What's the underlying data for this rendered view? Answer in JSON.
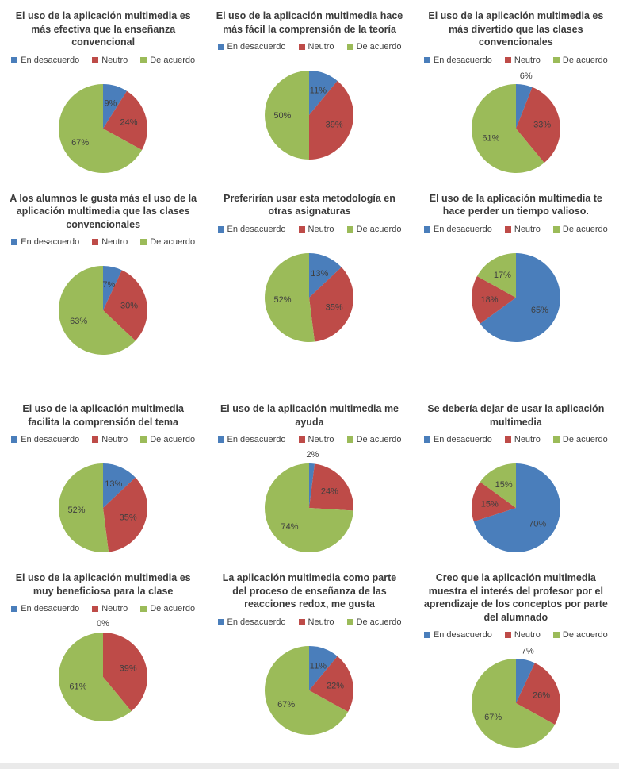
{
  "legend": {
    "items": [
      {
        "label": "En desacuerdo",
        "color": "#4A7EBB"
      },
      {
        "label": "Neutro",
        "color": "#BE4B48"
      },
      {
        "label": "De acuerdo",
        "color": "#9BBB59"
      }
    ],
    "position": "top"
  },
  "palette": {
    "label_text": "#3f3f3f",
    "title_text": "#3a3a3a",
    "background": "#ffffff"
  },
  "chart_data": [
    {
      "type": "pie",
      "title": "El uso de la aplicación multimedia es más efectiva que la enseñanza convencional",
      "categories": [
        "En desacuerdo",
        "Neutro",
        "De acuerdo"
      ],
      "values": [
        9,
        24,
        67
      ],
      "data_labels": [
        "9%",
        "24%",
        "67%"
      ],
      "label_placement": [
        "inside",
        "inside",
        "inside"
      ],
      "legend_position": "top"
    },
    {
      "type": "pie",
      "title": "El uso de la aplicación multimedia hace más fácil la comprensión de la teoría",
      "categories": [
        "En desacuerdo",
        "Neutro",
        "De acuerdo"
      ],
      "values": [
        11,
        39,
        50
      ],
      "data_labels": [
        "11%",
        "39%",
        "50%"
      ],
      "label_placement": [
        "inside",
        "inside",
        "inside"
      ],
      "legend_position": "top"
    },
    {
      "type": "pie",
      "title": "El uso de la aplicación multimedia es más divertido que las clases convencionales",
      "categories": [
        "En desacuerdo",
        "Neutro",
        "De acuerdo"
      ],
      "values": [
        6,
        33,
        61
      ],
      "data_labels": [
        "6%",
        "33%",
        "61%"
      ],
      "label_placement": [
        "outside",
        "inside",
        "inside"
      ],
      "legend_position": "top"
    },
    {
      "type": "pie",
      "title": "A los alumnos le gusta más el uso de la aplicación multimedia que las clases convencionales",
      "categories": [
        "En desacuerdo",
        "Neutro",
        "De acuerdo"
      ],
      "values": [
        7,
        30,
        63
      ],
      "data_labels": [
        "7%",
        "30%",
        "63%"
      ],
      "label_placement": [
        "inside",
        "inside",
        "inside"
      ],
      "legend_position": "top"
    },
    {
      "type": "pie",
      "title": "Preferirían usar esta metodología en otras asignaturas",
      "categories": [
        "En desacuerdo",
        "Neutro",
        "De acuerdo"
      ],
      "values": [
        13,
        35,
        52
      ],
      "data_labels": [
        "13%",
        "35%",
        "52%"
      ],
      "label_placement": [
        "inside",
        "inside",
        "inside"
      ],
      "legend_position": "top"
    },
    {
      "type": "pie",
      "title": "El uso de la aplicación multimedia te hace perder un tiempo valioso.",
      "categories": [
        "En desacuerdo",
        "Neutro",
        "De acuerdo"
      ],
      "values": [
        65,
        18,
        17
      ],
      "data_labels": [
        "65%",
        "18%",
        "17%"
      ],
      "label_placement": [
        "inside",
        "inside",
        "inside"
      ],
      "legend_position": "top"
    },
    {
      "type": "pie",
      "title": "El uso de la aplicación multimedia facilita la comprensión del tema",
      "categories": [
        "En desacuerdo",
        "Neutro",
        "De acuerdo"
      ],
      "values": [
        13,
        35,
        52
      ],
      "data_labels": [
        "13%",
        "35%",
        "52%"
      ],
      "label_placement": [
        "inside",
        "inside",
        "inside"
      ],
      "legend_position": "top"
    },
    {
      "type": "pie",
      "title": "El uso de la aplicación multimedia me ayuda",
      "categories": [
        "En desacuerdo",
        "Neutro",
        "De acuerdo"
      ],
      "values": [
        2,
        24,
        74
      ],
      "data_labels": [
        "2%",
        "24%",
        "74%"
      ],
      "label_placement": [
        "outside",
        "inside",
        "inside"
      ],
      "legend_position": "top"
    },
    {
      "type": "pie",
      "title": "Se debería dejar de usar la aplicación multimedia",
      "categories": [
        "En desacuerdo",
        "Neutro",
        "De acuerdo"
      ],
      "values": [
        70,
        15,
        15
      ],
      "data_labels": [
        "70%",
        "15%",
        "15%"
      ],
      "label_placement": [
        "inside",
        "inside",
        "inside"
      ],
      "legend_position": "top"
    },
    {
      "type": "pie",
      "title": "El uso de la aplicación multimedia es muy beneficiosa para la clase",
      "categories": [
        "En desacuerdo",
        "Neutro",
        "De acuerdo"
      ],
      "values": [
        0,
        39,
        61
      ],
      "data_labels": [
        "0%",
        "39%",
        "61%"
      ],
      "label_placement": [
        "outside",
        "inside",
        "inside"
      ],
      "legend_position": "top"
    },
    {
      "type": "pie",
      "title": "La aplicación multimedia como parte del proceso de enseñanza de las reacciones redox, me gusta",
      "categories": [
        "En desacuerdo",
        "Neutro",
        "De acuerdo"
      ],
      "values": [
        11,
        22,
        67
      ],
      "data_labels": [
        "11%",
        "22%",
        "67%"
      ],
      "label_placement": [
        "inside",
        "inside",
        "inside"
      ],
      "legend_position": "top"
    },
    {
      "type": "pie",
      "title": "Creo que la aplicación multimedia muestra el interés del profesor por el aprendizaje de los conceptos por parte del alumnado",
      "categories": [
        "En desacuerdo",
        "Neutro",
        "De acuerdo"
      ],
      "values": [
        7,
        26,
        67
      ],
      "data_labels": [
        "7%",
        "26%",
        "67%"
      ],
      "label_placement": [
        "outside",
        "inside",
        "inside"
      ],
      "legend_position": "top"
    }
  ]
}
